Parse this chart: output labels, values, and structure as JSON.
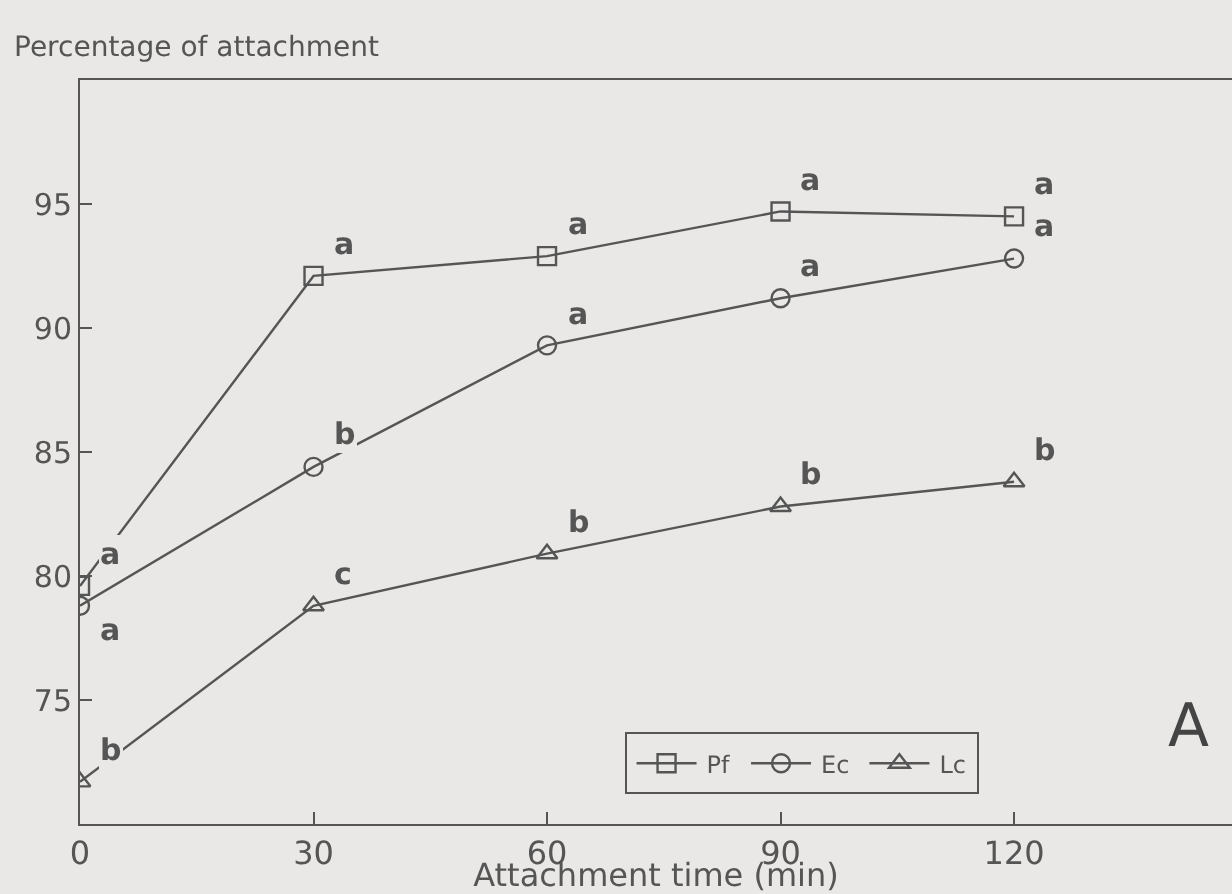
{
  "chart_data": {
    "type": "line",
    "ylabel": "Percentage of attachment",
    "xlabel": "Attachment time (min)",
    "x": [
      0,
      30,
      60,
      90,
      120
    ],
    "series": [
      {
        "name": "Pf",
        "color": "#555555",
        "marker": "square",
        "values": [
          79.6,
          92.1,
          92.9,
          94.7,
          94.5
        ]
      },
      {
        "name": "Ec",
        "color": "#555555",
        "marker": "circle",
        "values": [
          78.8,
          84.4,
          89.3,
          91.2,
          92.8
        ]
      },
      {
        "name": "Lc",
        "color": "#555555",
        "marker": "triangle",
        "values": [
          71.7,
          78.8,
          80.9,
          82.8,
          83.8
        ]
      }
    ],
    "xlim": [
      0,
      148
    ],
    "xticks": [
      0,
      30,
      60,
      90,
      120
    ],
    "ylim": [
      70,
      100
    ],
    "yticks": [
      75,
      80,
      85,
      90,
      95
    ],
    "grid": false,
    "legend": "bottom right",
    "line_style": "solid",
    "annotations": [
      {
        "text": "a",
        "x": 0,
        "y": 79.6
      },
      {
        "text": "a",
        "x": 30,
        "y": 92.1
      },
      {
        "text": "a",
        "x": 60,
        "y": 92.9
      },
      {
        "text": "a",
        "x": 90,
        "y": 94.7
      },
      {
        "text": "a",
        "x": 120,
        "y": 94.5
      },
      {
        "text": "a",
        "x": 0,
        "y": 78.8
      },
      {
        "text": "b",
        "x": 30,
        "y": 84.4
      },
      {
        "text": "a",
        "x": 60,
        "y": 89.3
      },
      {
        "text": "a",
        "x": 90,
        "y": 91.2
      },
      {
        "text": "a",
        "x": 120,
        "y": 92.8
      },
      {
        "text": "b",
        "x": 0,
        "y": 71.7
      },
      {
        "text": "c",
        "x": 30,
        "y": 78.8
      },
      {
        "text": "b",
        "x": 60,
        "y": 80.9
      },
      {
        "text": "b",
        "x": 90,
        "y": 82.8
      },
      {
        "text": "b",
        "x": 120,
        "y": 83.8
      },
      "A"
    ]
  }
}
